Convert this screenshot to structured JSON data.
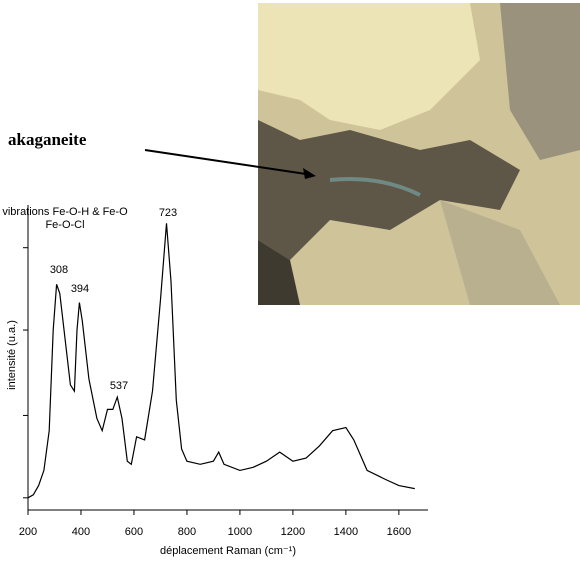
{
  "chart_data": {
    "type": "line",
    "x_label": "déplacement Raman (cm⁻¹)",
    "y_label": "intensité (u.a.)",
    "annotations": [
      "vibrations Fe-O-H & Fe-O",
      "Fe-O-Cl",
      "308",
      "394",
      "537",
      "723"
    ],
    "photo_label": "akaganeite",
    "xlim": [
      200,
      1710
    ],
    "xticks": [
      200,
      400,
      600,
      800,
      1000,
      1200,
      1400,
      1600
    ],
    "ylim": [
      0,
      100
    ],
    "yticks": [
      4,
      31,
      59,
      86
    ],
    "color": "#000000",
    "x": [
      200,
      220,
      240,
      260,
      280,
      295,
      308,
      320,
      340,
      360,
      375,
      385,
      394,
      405,
      430,
      460,
      480,
      500,
      520,
      537,
      555,
      575,
      590,
      610,
      640,
      670,
      700,
      723,
      740,
      760,
      780,
      800,
      850,
      900,
      920,
      940,
      1000,
      1050,
      1100,
      1150,
      1200,
      1250,
      1300,
      1350,
      1400,
      1430,
      1480,
      1550,
      1600,
      1660
    ],
    "values": [
      4,
      5,
      8,
      13,
      26,
      59,
      74,
      71,
      56,
      41,
      39,
      59,
      68,
      62,
      43,
      30,
      26,
      33,
      33,
      37,
      30,
      16,
      15,
      24,
      23,
      39,
      69,
      94,
      75,
      36,
      20,
      16,
      15,
      16,
      19,
      15,
      13,
      14,
      16,
      19,
      16,
      17,
      21,
      26,
      27,
      23,
      13,
      10,
      8,
      7
    ]
  }
}
